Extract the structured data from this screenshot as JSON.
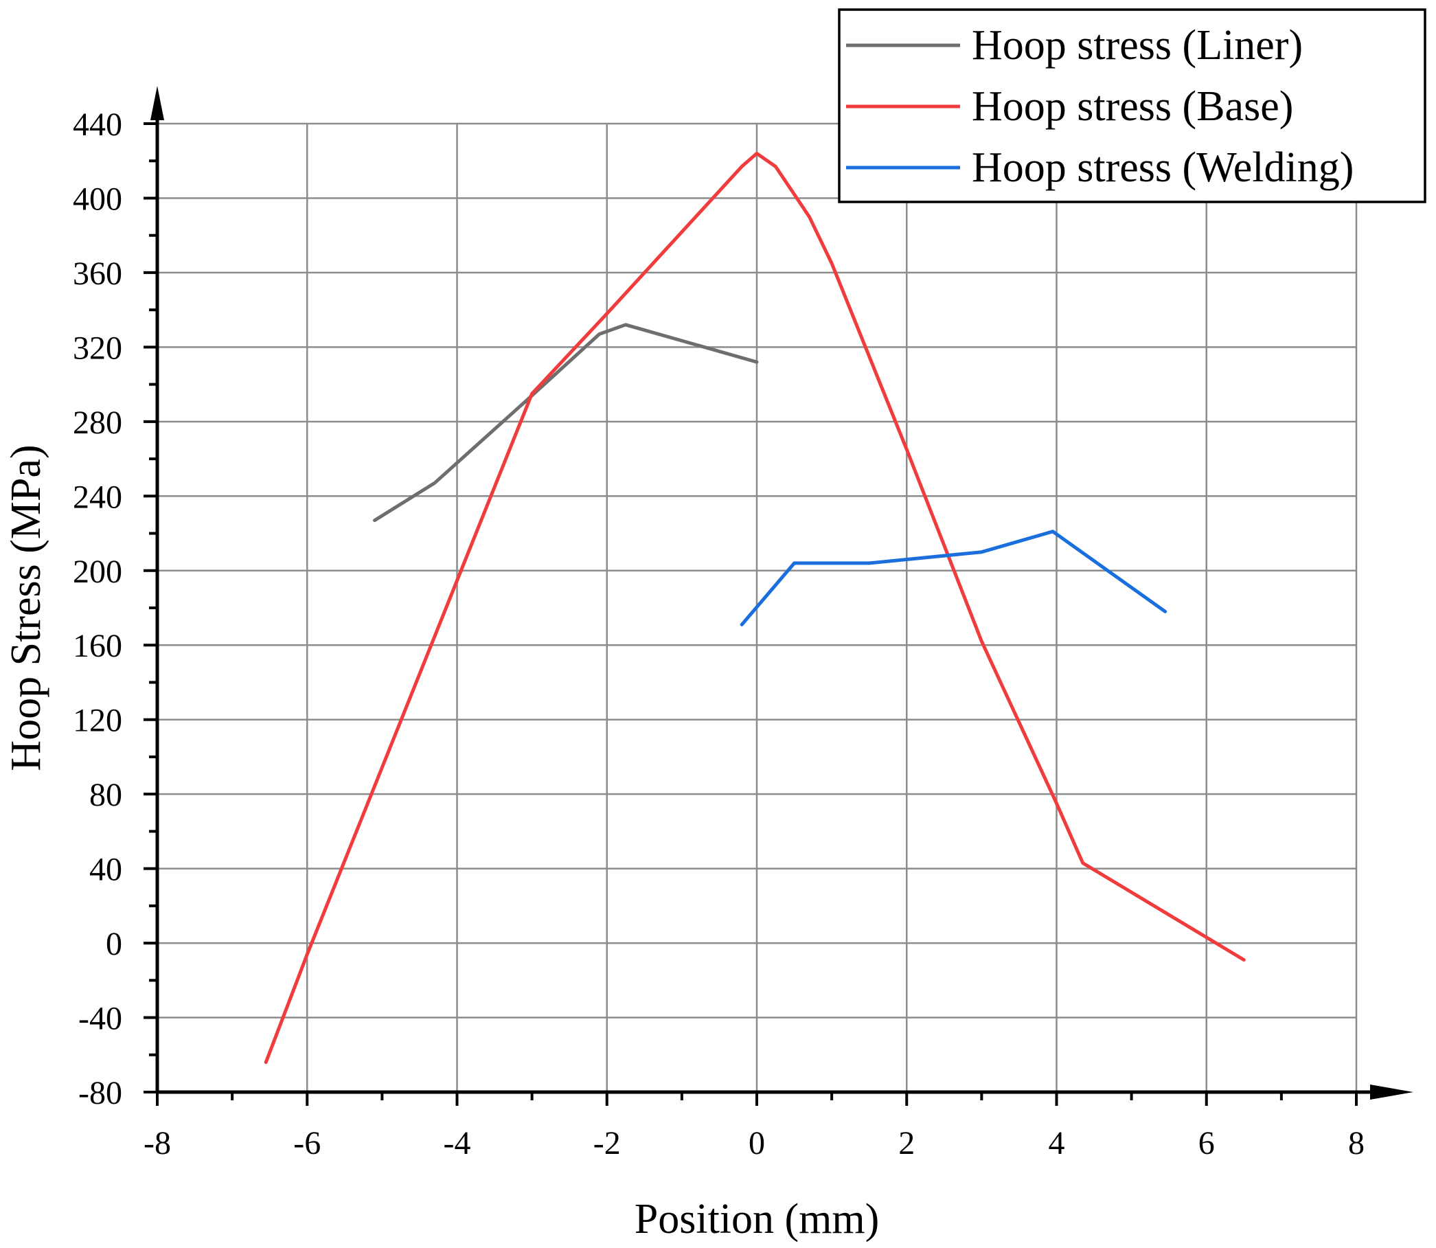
{
  "chart_data": {
    "type": "line",
    "xlabel": "Position (mm)",
    "ylabel": "Hoop Stress (MPa)",
    "xlim": [
      -8,
      8
    ],
    "ylim": [
      -80,
      440
    ],
    "x_ticks": [
      -8,
      -6,
      -4,
      -2,
      0,
      2,
      4,
      6,
      8
    ],
    "y_ticks": [
      -80,
      -40,
      0,
      40,
      80,
      120,
      160,
      200,
      240,
      280,
      320,
      360,
      400,
      440
    ],
    "x_tick_labels": [
      "-8",
      "-6",
      "-4",
      "-2",
      "0",
      "2",
      "4",
      "6",
      "8"
    ],
    "y_tick_labels": [
      "-80",
      "-40",
      "0",
      "40",
      "80",
      "120",
      "160",
      "200",
      "240",
      "280",
      "320",
      "360",
      "400",
      "440"
    ],
    "grid": true,
    "legend_position": "top-right",
    "series": [
      {
        "name": "Hoop stress (Liner)",
        "color": "#6e6e6e",
        "points": [
          [
            -5.1,
            227
          ],
          [
            -4.3,
            247
          ],
          [
            -3.0,
            294
          ],
          [
            -2.1,
            327
          ],
          [
            -1.75,
            332
          ],
          [
            0.0,
            312
          ]
        ]
      },
      {
        "name": "Hoop stress (Base)",
        "color": "#f03c3c",
        "points": [
          [
            -6.55,
            -64
          ],
          [
            -6.0,
            -6
          ],
          [
            -3.0,
            295
          ],
          [
            -2.0,
            338
          ],
          [
            -0.2,
            417
          ],
          [
            0.0,
            424
          ],
          [
            0.25,
            417
          ],
          [
            0.5,
            402
          ],
          [
            0.7,
            390
          ],
          [
            1.0,
            365
          ],
          [
            2.0,
            265
          ],
          [
            3.0,
            162
          ],
          [
            4.0,
            75
          ],
          [
            4.35,
            43
          ],
          [
            6.5,
            -9
          ]
        ]
      },
      {
        "name": "Hoop stress (Welding)",
        "color": "#1a6fdc",
        "points": [
          [
            -0.2,
            171
          ],
          [
            0.5,
            204
          ],
          [
            1.5,
            204
          ],
          [
            3.0,
            210
          ],
          [
            3.95,
            221
          ],
          [
            5.45,
            178
          ]
        ]
      }
    ]
  }
}
